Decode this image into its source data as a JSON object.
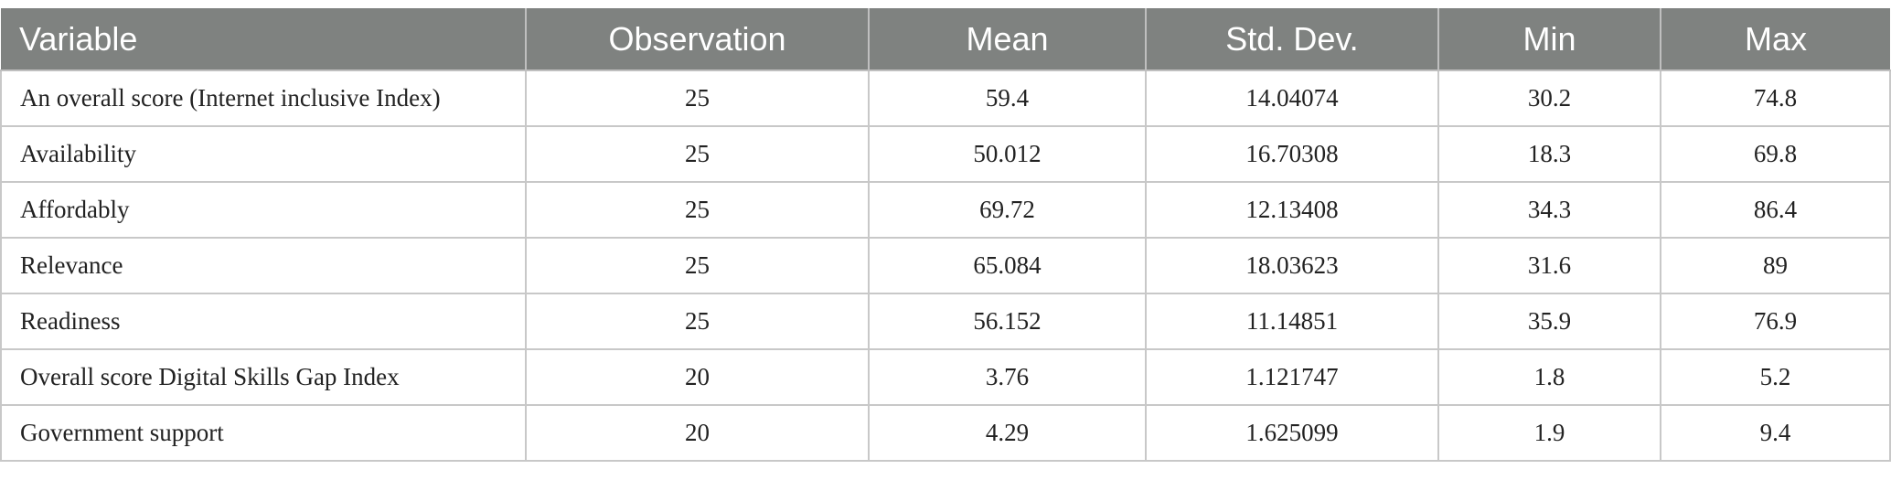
{
  "table": {
    "headers": [
      "Variable",
      "Observation",
      "Mean",
      "Std. Dev.",
      "Min",
      "Max"
    ],
    "rows": [
      [
        "An overall score (Internet inclusive Index)",
        "25",
        "59.4",
        "14.04074",
        "30.2",
        "74.8"
      ],
      [
        "Availability",
        "25",
        "50.012",
        "16.70308",
        "18.3",
        "69.8"
      ],
      [
        "Affordably",
        "25",
        "69.72",
        "12.13408",
        "34.3",
        "86.4"
      ],
      [
        "Relevance",
        "25",
        "65.084",
        "18.03623",
        "31.6",
        "89"
      ],
      [
        "Readiness",
        "25",
        "56.152",
        "11.14851",
        "35.9",
        "76.9"
      ],
      [
        "Overall score Digital Skills Gap Index",
        "20",
        "3.76",
        "1.121747",
        "1.8",
        "5.2"
      ],
      [
        "Government support",
        "20",
        "4.29",
        "1.625099",
        "1.9",
        "9.4"
      ]
    ]
  },
  "colors": {
    "header_bg": "#7f8280",
    "header_text": "#ffffff",
    "border": "#c8c8c8"
  }
}
